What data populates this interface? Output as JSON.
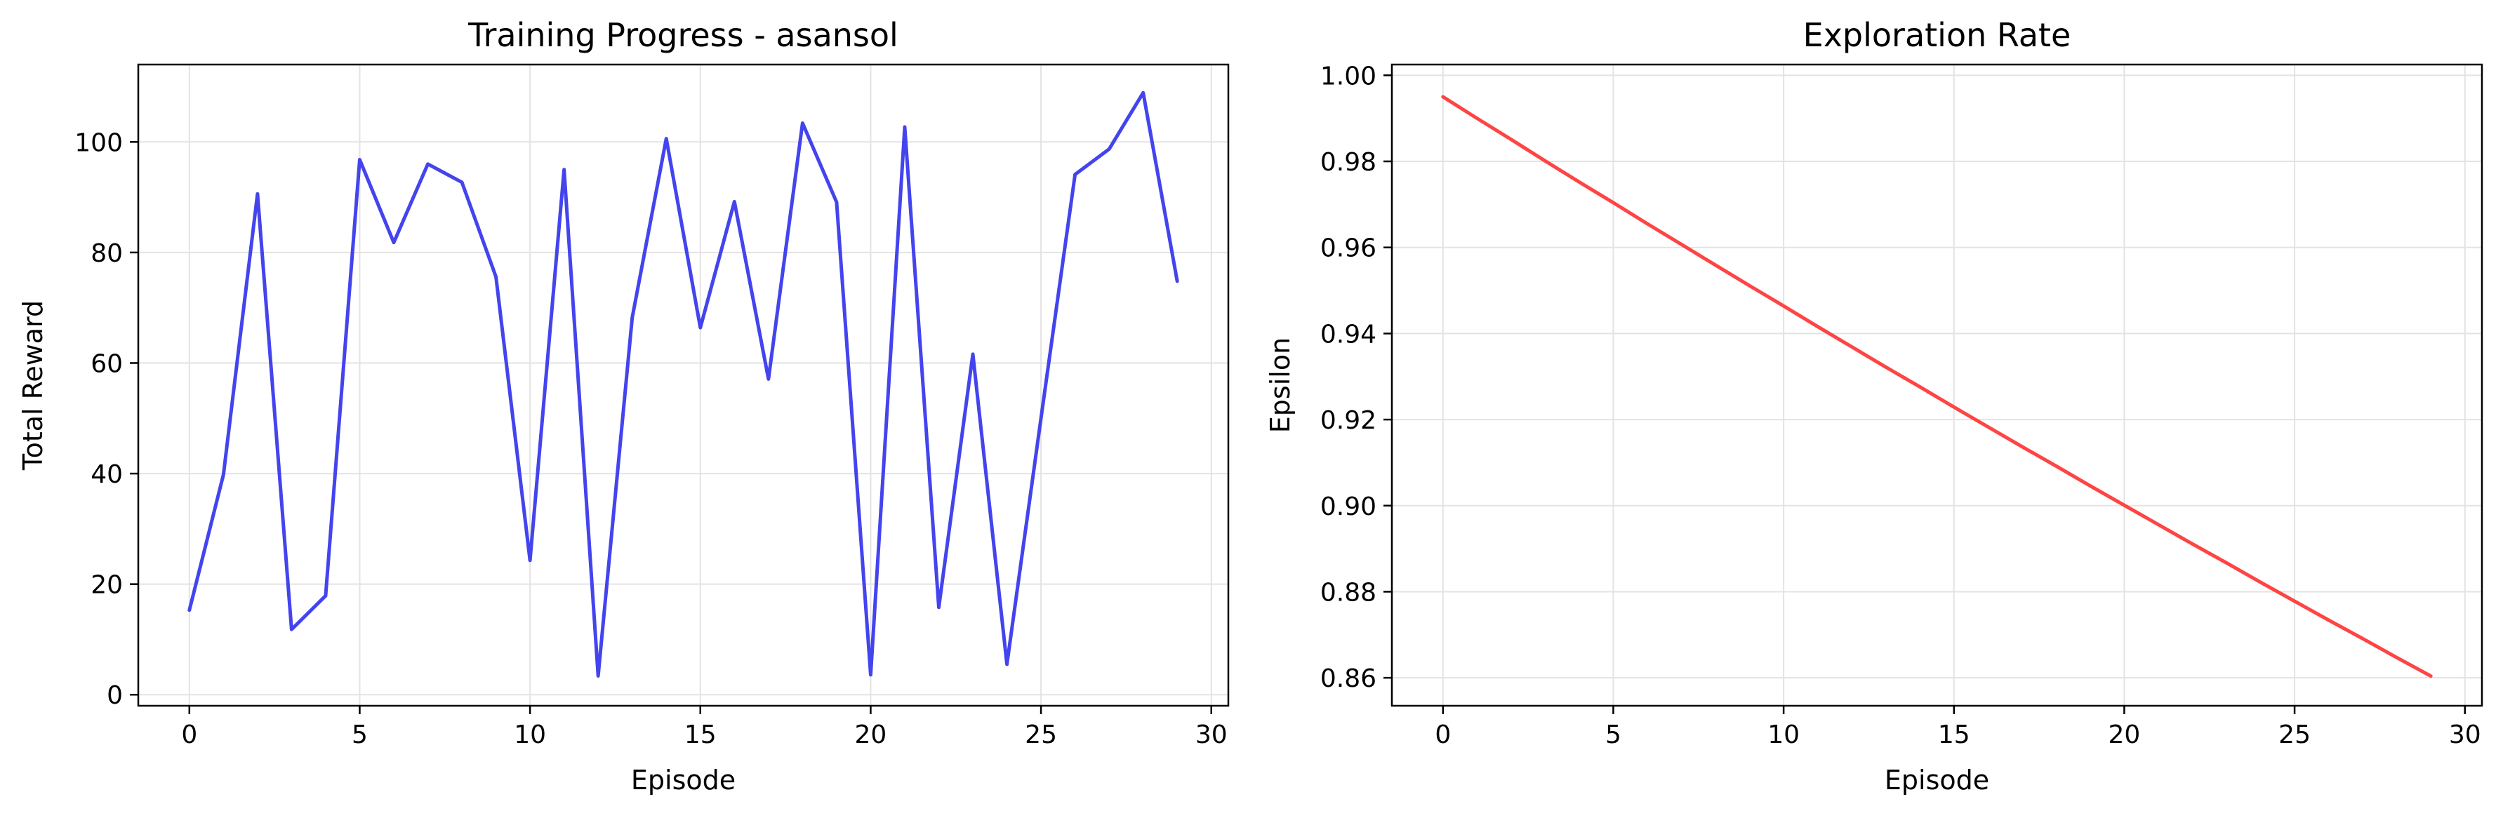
{
  "chart_data": [
    {
      "type": "line",
      "title": "Training Progress - asansol",
      "xlabel": "Episode",
      "ylabel": "Total Reward",
      "xlim": [
        -1.5,
        30.5
      ],
      "ylim": [
        -2,
        114
      ],
      "xticks": [
        0,
        5,
        10,
        15,
        20,
        25,
        30
      ],
      "yticks": [
        0,
        20,
        40,
        60,
        80,
        100
      ],
      "xtick_labels": [
        "0",
        "5",
        "10",
        "15",
        "20",
        "25",
        "30"
      ],
      "ytick_labels": [
        "0",
        "20",
        "40",
        "60",
        "80",
        "100"
      ],
      "grid": true,
      "color": "#4444ee",
      "x": [
        0,
        1,
        2,
        3,
        4,
        5,
        6,
        7,
        8,
        9,
        10,
        11,
        12,
        13,
        14,
        15,
        16,
        17,
        18,
        19,
        20,
        21,
        22,
        23,
        24,
        25,
        26,
        27,
        28,
        29
      ],
      "series": [
        {
          "values": [
            15.3,
            39.8,
            90.6,
            11.8,
            17.9,
            96.8,
            81.8,
            96.0,
            92.7,
            75.6,
            24.3,
            95.0,
            3.4,
            68.2,
            100.6,
            66.4,
            89.2,
            57.1,
            103.4,
            89.1,
            3.6,
            102.7,
            15.8,
            61.6,
            5.5,
            50.0,
            94.1,
            98.7,
            108.9,
            74.8
          ]
        }
      ]
    },
    {
      "type": "line",
      "title": "Exploration Rate",
      "xlabel": "Episode",
      "ylabel": "Epsilon",
      "xlim": [
        -1.5,
        30.5
      ],
      "ylim": [
        0.8535,
        1.0025
      ],
      "xticks": [
        0,
        5,
        10,
        15,
        20,
        25,
        30
      ],
      "yticks": [
        0.86,
        0.88,
        0.9,
        0.92,
        0.94,
        0.96,
        0.98,
        1.0
      ],
      "xtick_labels": [
        "0",
        "5",
        "10",
        "15",
        "20",
        "25",
        "30"
      ],
      "ytick_labels": [
        "0.86",
        "0.88",
        "0.90",
        "0.92",
        "0.94",
        "0.96",
        "0.98",
        "1.00"
      ],
      "grid": true,
      "color": "#ff4444",
      "x": [
        0,
        1,
        2,
        3,
        4,
        5,
        6,
        7,
        8,
        9,
        10,
        11,
        12,
        13,
        14,
        15,
        16,
        17,
        18,
        19,
        20,
        21,
        22,
        23,
        24,
        25,
        26,
        27,
        28,
        29
      ],
      "series": [
        {
          "values": [
            0.995,
            0.99,
            0.9851,
            0.9801,
            0.9752,
            0.9704,
            0.9655,
            0.9607,
            0.9559,
            0.9511,
            0.9464,
            0.9416,
            0.9369,
            0.9322,
            0.9276,
            0.9229,
            0.9183,
            0.9137,
            0.9092,
            0.9046,
            0.9001,
            0.8956,
            0.8911,
            0.8867,
            0.8822,
            0.8778,
            0.8734,
            0.8691,
            0.8647,
            0.8604
          ]
        }
      ]
    }
  ]
}
